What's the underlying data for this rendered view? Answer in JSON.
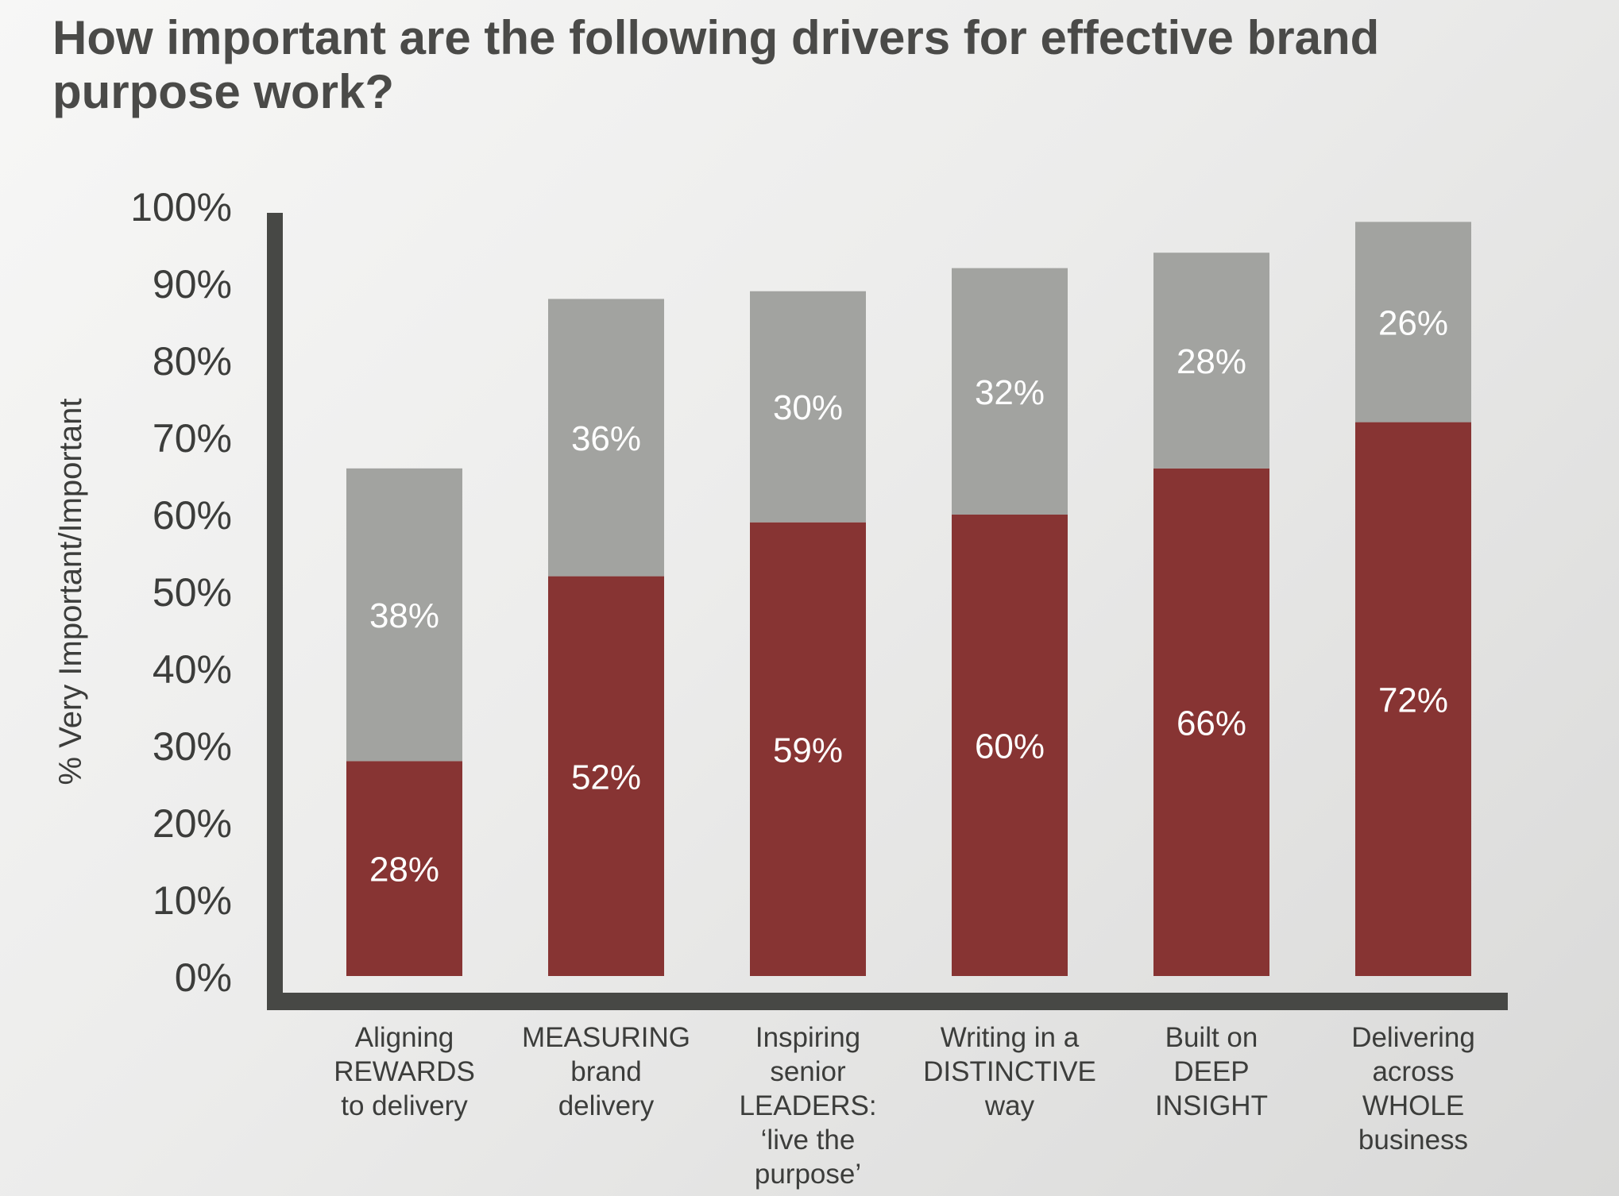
{
  "chart_data": {
    "type": "bar",
    "stacked": true,
    "title": "How important are the following drivers for effective brand purpose work?",
    "ylabel": "% Very Important/Important",
    "xlabel": "",
    "ylim": [
      0,
      100
    ],
    "yticks": [
      "0%",
      "10%",
      "20%",
      "30%",
      "40%",
      "50%",
      "60%",
      "70%",
      "80%",
      "90%",
      "100%"
    ],
    "grid": false,
    "legend": "none",
    "categories": [
      [
        "Aligning",
        "REWARDS",
        "to delivery"
      ],
      [
        "MEASURING",
        "brand",
        "delivery"
      ],
      [
        "Inspiring",
        "senior",
        "LEADERS:",
        "‘live the",
        "purpose’"
      ],
      [
        "Writing in a",
        "DISTINCTIVE",
        "way"
      ],
      [
        "Built on",
        "DEEP",
        "INSIGHT"
      ],
      [
        "Delivering",
        "across",
        "WHOLE",
        "business"
      ]
    ],
    "series": [
      {
        "values": [
          28,
          52,
          59,
          60,
          66,
          72
        ],
        "labels": [
          "28%",
          "52%",
          "59%",
          "60%",
          "66%",
          "72%"
        ],
        "color": "#873433"
      },
      {
        "values": [
          38,
          36,
          30,
          32,
          28,
          26
        ],
        "labels": [
          "38%",
          "36%",
          "30%",
          "32%",
          "28%",
          "26%"
        ],
        "color": "#a2a3a0"
      }
    ],
    "axis_color": "#474845",
    "tick_color": "#3c3d3b",
    "data_label_color": "#ffffff"
  }
}
